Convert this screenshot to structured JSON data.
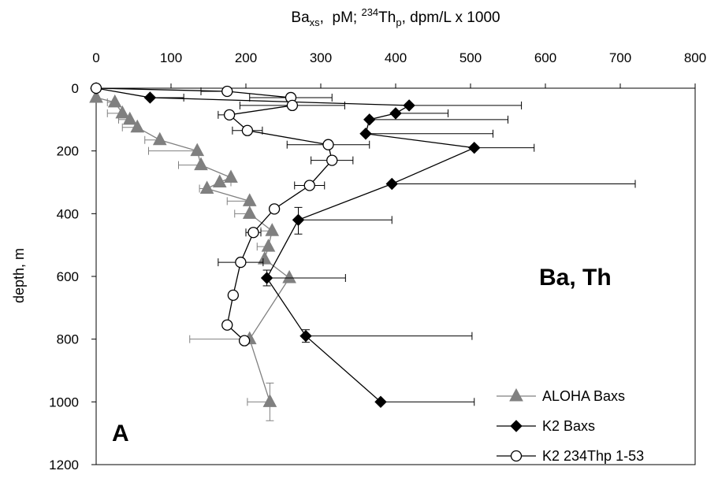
{
  "chart_data": {
    "type": "scatter",
    "title_parts": {
      "a1": "Ba",
      "a1_sub": "xs",
      "a2": ",  pM; ",
      "a2_sup": "234",
      "a3": "Th",
      "a3_sub": "p",
      "a4": ", dpm/L x 1000"
    },
    "xlabel": "",
    "ylabel": "depth, m",
    "xlim": [
      0,
      800
    ],
    "ylim": [
      0,
      1200
    ],
    "y_reversed": true,
    "x_axis_position": "top",
    "x_ticks": [
      "0",
      "100",
      "200",
      "300",
      "400",
      "500",
      "600",
      "700",
      "800"
    ],
    "y_ticks": [
      "0",
      "200",
      "400",
      "600",
      "800",
      "1000",
      "1200"
    ],
    "annotation": "Ba, Th",
    "panel_label": "A",
    "legend_position": "bottom-right",
    "series": [
      {
        "name": "ALOHA Baxs",
        "color": "#808080",
        "marker": "triangle",
        "points": [
          {
            "x": 0,
            "y": 30,
            "xerr": [
              0,
              0
            ],
            "yerr": [
              0,
              0
            ]
          },
          {
            "x": 25,
            "y": 45,
            "xerr": [
              10,
              0
            ],
            "yerr": [
              0,
              0
            ]
          },
          {
            "x": 35,
            "y": 80,
            "xerr": [
              20,
              0
            ],
            "yerr": [
              0,
              0
            ]
          },
          {
            "x": 45,
            "y": 100,
            "xerr": [
              15,
              0
            ],
            "yerr": [
              0,
              0
            ]
          },
          {
            "x": 55,
            "y": 125,
            "xerr": [
              20,
              0
            ],
            "yerr": [
              0,
              0
            ]
          },
          {
            "x": 85,
            "y": 165,
            "xerr": [
              20,
              0
            ],
            "yerr": [
              0,
              0
            ]
          },
          {
            "x": 135,
            "y": 200,
            "xerr": [
              65,
              0
            ],
            "yerr": [
              0,
              0
            ]
          },
          {
            "x": 140,
            "y": 245,
            "xerr": [
              30,
              0
            ],
            "yerr": [
              0,
              0
            ]
          },
          {
            "x": 180,
            "y": 285,
            "xerr": [
              0,
              0
            ],
            "yerr": [
              0,
              0
            ]
          },
          {
            "x": 165,
            "y": 300,
            "xerr": [
              0,
              15
            ],
            "yerr": [
              0,
              0
            ]
          },
          {
            "x": 148,
            "y": 320,
            "xerr": [
              10,
              0
            ],
            "yerr": [
              0,
              0
            ]
          },
          {
            "x": 205,
            "y": 360,
            "xerr": [
              30,
              0
            ],
            "yerr": [
              0,
              0
            ]
          },
          {
            "x": 205,
            "y": 400,
            "xerr": [
              20,
              0
            ],
            "yerr": [
              0,
              0
            ]
          },
          {
            "x": 235,
            "y": 455,
            "xerr": [
              15,
              0
            ],
            "yerr": [
              0,
              0
            ]
          },
          {
            "x": 230,
            "y": 505,
            "xerr": [
              15,
              0
            ],
            "yerr": [
              0,
              0
            ]
          },
          {
            "x": 225,
            "y": 545,
            "xerr": [
              0,
              0
            ],
            "yerr": [
              0,
              0
            ]
          },
          {
            "x": 258,
            "y": 605,
            "xerr": [
              0,
              0
            ],
            "yerr": [
              0,
              0
            ]
          },
          {
            "x": 205,
            "y": 800,
            "xerr": [
              80,
              0
            ],
            "yerr": [
              0,
              0
            ]
          },
          {
            "x": 232,
            "y": 1000,
            "xerr": [
              30,
              0
            ],
            "yerr": [
              60,
              60
            ]
          }
        ]
      },
      {
        "name": "K2 Baxs",
        "color": "#000000",
        "marker": "diamond",
        "points": [
          {
            "x": 0,
            "y": 0,
            "xerr": [
              0,
              0
            ],
            "yerr": [
              0,
              0
            ]
          },
          {
            "x": 72,
            "y": 30,
            "xerr": [
              0,
              45
            ],
            "yerr": [
              0,
              0
            ]
          },
          {
            "x": 418,
            "y": 55,
            "xerr": [
              0,
              150
            ],
            "yerr": [
              0,
              0
            ]
          },
          {
            "x": 400,
            "y": 80,
            "xerr": [
              0,
              70
            ],
            "yerr": [
              0,
              0
            ]
          },
          {
            "x": 365,
            "y": 100,
            "xerr": [
              0,
              185
            ],
            "yerr": [
              0,
              0
            ]
          },
          {
            "x": 360,
            "y": 145,
            "xerr": [
              0,
              170
            ],
            "yerr": [
              0,
              0
            ]
          },
          {
            "x": 505,
            "y": 190,
            "xerr": [
              0,
              80
            ],
            "yerr": [
              0,
              0
            ]
          },
          {
            "x": 395,
            "y": 305,
            "xerr": [
              0,
              325
            ],
            "yerr": [
              0,
              0
            ]
          },
          {
            "x": 270,
            "y": 420,
            "xerr": [
              0,
              125
            ],
            "yerr": [
              40,
              45
            ]
          },
          {
            "x": 228,
            "y": 605,
            "xerr": [
              0,
              105
            ],
            "yerr": [
              25,
              25
            ]
          },
          {
            "x": 280,
            "y": 790,
            "xerr": [
              0,
              222
            ],
            "yerr": [
              20,
              20
            ]
          },
          {
            "x": 380,
            "y": 1000,
            "xerr": [
              0,
              125
            ],
            "yerr": [
              0,
              0
            ]
          }
        ]
      },
      {
        "name": "K2 234Thp 1-53",
        "color": "#000000",
        "marker": "circle",
        "points": [
          {
            "x": 0,
            "y": 0,
            "xerr": [
              0,
              0
            ],
            "yerr": [
              0,
              0
            ]
          },
          {
            "x": 175,
            "y": 10,
            "xerr": [
              35,
              0
            ],
            "yerr": [
              0,
              0
            ]
          },
          {
            "x": 260,
            "y": 30,
            "xerr": [
              55,
              55
            ],
            "yerr": [
              0,
              0
            ]
          },
          {
            "x": 262,
            "y": 55,
            "xerr": [
              70,
              70
            ],
            "yerr": [
              0,
              0
            ]
          },
          {
            "x": 178,
            "y": 85,
            "xerr": [
              15,
              0
            ],
            "yerr": [
              0,
              0
            ]
          },
          {
            "x": 202,
            "y": 135,
            "xerr": [
              20,
              20
            ],
            "yerr": [
              0,
              0
            ]
          },
          {
            "x": 310,
            "y": 180,
            "xerr": [
              55,
              55
            ],
            "yerr": [
              0,
              0
            ]
          },
          {
            "x": 315,
            "y": 230,
            "xerr": [
              28,
              28
            ],
            "yerr": [
              0,
              0
            ]
          },
          {
            "x": 285,
            "y": 310,
            "xerr": [
              20,
              20
            ],
            "yerr": [
              0,
              0
            ]
          },
          {
            "x": 238,
            "y": 385,
            "xerr": [
              0,
              0
            ],
            "yerr": [
              0,
              0
            ]
          },
          {
            "x": 210,
            "y": 460,
            "xerr": [
              10,
              10
            ],
            "yerr": [
              0,
              0
            ]
          },
          {
            "x": 193,
            "y": 555,
            "xerr": [
              30,
              30
            ],
            "yerr": [
              0,
              0
            ]
          },
          {
            "x": 183,
            "y": 660,
            "xerr": [
              0,
              0
            ],
            "yerr": [
              0,
              0
            ]
          },
          {
            "x": 175,
            "y": 755,
            "xerr": [
              0,
              0
            ],
            "yerr": [
              0,
              0
            ]
          },
          {
            "x": 198,
            "y": 805,
            "xerr": [
              0,
              0
            ],
            "yerr": [
              0,
              0
            ]
          }
        ]
      }
    ]
  }
}
